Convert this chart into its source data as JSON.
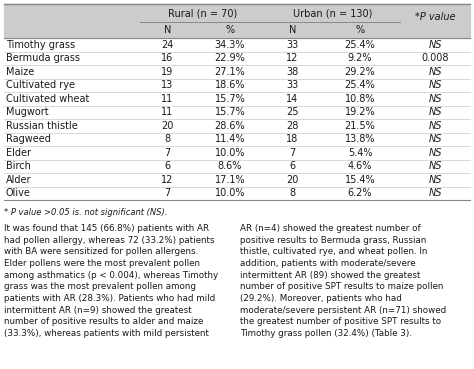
{
  "rows": [
    [
      "Timothy grass",
      "24",
      "34.3%",
      "33",
      "25.4%",
      "NS"
    ],
    [
      "Bermuda grass",
      "16",
      "22.9%",
      "12",
      "9.2%",
      "0.008"
    ],
    [
      "Maize",
      "19",
      "27.1%",
      "38",
      "29.2%",
      "NS"
    ],
    [
      "Cultivated rye",
      "13",
      "18.6%",
      "33",
      "25.4%",
      "NS"
    ],
    [
      "Cultivated wheat",
      "11",
      "15.7%",
      "14",
      "10.8%",
      "NS"
    ],
    [
      "Mugwort",
      "11",
      "15.7%",
      "25",
      "19.2%",
      "NS"
    ],
    [
      "Russian thistle",
      "20",
      "28.6%",
      "28",
      "21.5%",
      "NS"
    ],
    [
      "Ragweed",
      "8",
      "11.4%",
      "18",
      "13.8%",
      "NS"
    ],
    [
      "Elder",
      "7",
      "10.0%",
      "7",
      "5.4%",
      "NS"
    ],
    [
      "Birch",
      "6",
      "8.6%",
      "6",
      "4.6%",
      "NS"
    ],
    [
      "Alder",
      "12",
      "17.1%",
      "20",
      "15.4%",
      "NS"
    ],
    [
      "Olive",
      "7",
      "10.0%",
      "8",
      "6.2%",
      "NS"
    ]
  ],
  "footnote": "* P value >0.05 is. not significant (NS).",
  "header_bg": "#cccccc",
  "line_color": "#888888",
  "text_color": "#1a1a1a",
  "font_size": 7.0,
  "header_font_size": 7.0,
  "body_font_size": 6.3,
  "body_text_left": "It was found that 145 (66.8%) patients with AR\nhad pollen allergy, whereas 72 (33.2%) patients\nwith BA were sensitized for pollen allergens.\nElder pollens were the most prevalent pollen\namong asthmatics (p < 0.004), whereas Timothy\ngrass was the most prevalent pollen among\npatients with AR (28.3%). Patients who had mild\nintermittent AR (n=9) showed the greatest\nnumber of positive results to alder and maize\n(33.3%), whereas patients with mild persistent",
  "body_text_right": "AR (n=4) showed the greatest number of\npositive results to Bermuda grass, Russian\nthistle, cultivated rye, and wheat pollen. In\naddition, patients with moderate/severe\nintermittent AR (89) showed the greatest\nnumber of positive SPT results to maize pollen\n(29.2%). Moreover, patients who had\nmoderate/severe persistent AR (n=71) showed\nthe greatest number of positive SPT results to\nTimothy grass pollen (32.4%) (Table 3)."
}
